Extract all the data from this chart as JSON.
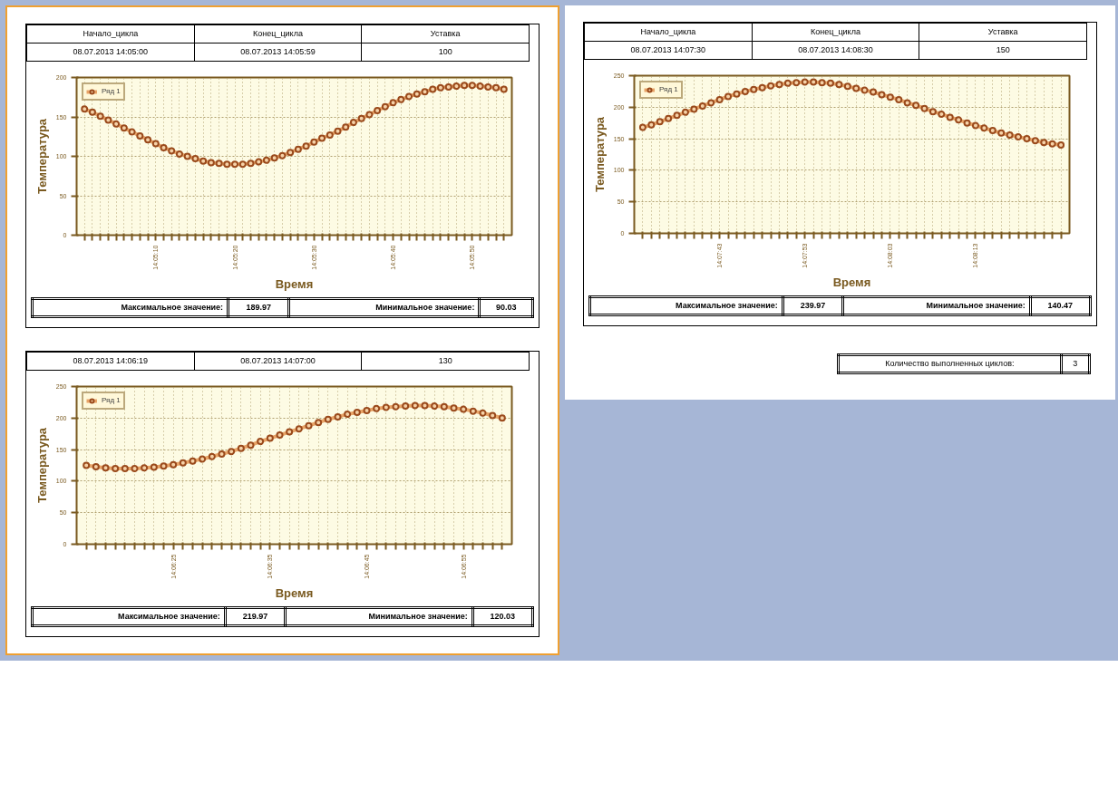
{
  "chart_data": [
    {
      "type": "line",
      "xlabel": "Время",
      "ylabel": "Температура",
      "legend": "top left",
      "grid": true,
      "marker": "circle",
      "line_style": "solid",
      "categories": [
        null,
        null,
        null,
        null,
        null,
        null,
        null,
        null,
        null,
        "14:05:10",
        null,
        null,
        null,
        null,
        null,
        null,
        null,
        null,
        null,
        "14:05:20",
        null,
        null,
        null,
        null,
        null,
        null,
        null,
        null,
        null,
        "14:05:30",
        null,
        null,
        null,
        null,
        null,
        null,
        null,
        null,
        null,
        "14:05:40",
        null,
        null,
        null,
        null,
        null,
        null,
        null,
        null,
        null,
        "14:05:50",
        null,
        null,
        null,
        null
      ],
      "series": [
        {
          "name": "Ряд 1",
          "color": "#9a4a1c",
          "values": [
            160,
            156,
            151,
            146,
            141,
            136,
            131,
            126,
            121,
            116,
            111,
            107,
            103,
            100,
            97,
            94,
            92,
            91,
            90,
            90,
            90,
            91,
            93,
            95,
            98,
            101,
            105,
            109,
            113,
            118,
            123,
            127,
            132,
            137,
            143,
            148,
            153,
            158,
            163,
            168,
            172,
            176,
            179,
            182,
            185,
            187,
            188,
            189,
            190,
            190,
            189,
            188,
            187,
            185
          ]
        }
      ],
      "ylim": [
        0,
        200
      ],
      "yticks": [
        0,
        50,
        100,
        150,
        200
      ],
      "annotations": [
        "Начало_цикла",
        "Конец_цикла",
        "Уставка",
        "08.07.2013 14:05:00",
        "08.07.2013 14:05:59",
        "100",
        "Максимальное значение:",
        "189.97",
        "Минимальное значение:",
        "90.03"
      ]
    },
    {
      "type": "line",
      "xlabel": "Время",
      "ylabel": "Температура",
      "legend": "top left",
      "grid": true,
      "marker": "circle",
      "line_style": "solid",
      "categories": [
        null,
        null,
        null,
        null,
        null,
        null,
        null,
        null,
        null,
        "14:07:43",
        null,
        null,
        null,
        null,
        null,
        null,
        null,
        null,
        null,
        "14:07:53",
        null,
        null,
        null,
        null,
        null,
        null,
        null,
        null,
        null,
        "14:08:03",
        null,
        null,
        null,
        null,
        null,
        null,
        null,
        null,
        null,
        "14:08:13",
        null,
        null,
        null,
        null,
        null,
        null,
        null,
        null,
        null,
        null
      ],
      "series": [
        {
          "name": "Ряд 1",
          "color": "#9a4a1c",
          "values": [
            168,
            172,
            177,
            182,
            187,
            192,
            197,
            202,
            207,
            212,
            217,
            221,
            225,
            228,
            231,
            234,
            236,
            238,
            239,
            240,
            240,
            239,
            238,
            236,
            233,
            230,
            227,
            224,
            220,
            216,
            212,
            207,
            203,
            198,
            193,
            189,
            184,
            180,
            175,
            171,
            167,
            163,
            159,
            156,
            153,
            150,
            147,
            144,
            142,
            140
          ]
        }
      ],
      "ylim": [
        0,
        250
      ],
      "yticks": [
        0,
        50,
        100,
        150,
        200,
        250
      ],
      "annotations": [
        "Начало_цикла",
        "Конец_цикла",
        "Уставка",
        "08.07.2013 14:07:30",
        "08.07.2013 14:08:30",
        "150",
        "Максимальное значение:",
        "239.97",
        "Минимальное значение:",
        "140.47"
      ]
    },
    {
      "type": "line",
      "xlabel": "Время",
      "ylabel": "Температура",
      "legend": "top left",
      "grid": true,
      "marker": "circle",
      "line_style": "solid",
      "categories": [
        null,
        null,
        null,
        null,
        null,
        null,
        null,
        null,
        null,
        "14:06:25",
        null,
        null,
        null,
        null,
        null,
        null,
        null,
        null,
        null,
        "14:06:35",
        null,
        null,
        null,
        null,
        null,
        null,
        null,
        null,
        null,
        "14:06:45",
        null,
        null,
        null,
        null,
        null,
        null,
        null,
        null,
        null,
        "14:06:55",
        null,
        null,
        null,
        null
      ],
      "series": [
        {
          "name": "Ряд 1",
          "color": "#9a4a1c",
          "values": [
            125,
            123,
            121,
            120,
            120,
            120,
            121,
            122,
            124,
            126,
            129,
            132,
            135,
            139,
            143,
            147,
            152,
            157,
            163,
            168,
            173,
            178,
            183,
            188,
            193,
            198,
            202,
            206,
            209,
            212,
            215,
            217,
            218,
            219,
            220,
            220,
            219,
            218,
            216,
            214,
            211,
            208,
            204,
            200
          ]
        }
      ],
      "ylim": [
        0,
        250
      ],
      "yticks": [
        0,
        50,
        100,
        150,
        200,
        250
      ],
      "annotations": [
        "08.07.2013 14:06:19",
        "08.07.2013 14:07:00",
        "130",
        "Максимальное значение:",
        "219.97",
        "Минимальное значение:",
        "120.03"
      ]
    },
    {
      "type": "other",
      "annotations": [
        "Количество выполненных циклов:",
        "3"
      ]
    }
  ]
}
